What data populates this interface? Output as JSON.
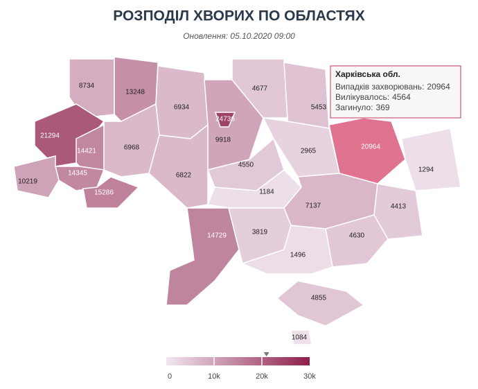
{
  "title": "РОЗПОДІЛ ХВОРИХ ПО ОБЛАСТЯХ",
  "subtitle": "Оновлення: 05.10.2020 09:00",
  "regions": [
    {
      "value": 8734
    },
    {
      "value": 13248
    },
    {
      "value": 6934
    },
    {
      "value": 9918
    },
    {
      "value": 24736
    },
    {
      "value": 4677
    },
    {
      "value": 5453
    },
    {
      "value": 21294
    },
    {
      "value": 14421
    },
    {
      "value": 6968
    },
    {
      "value": 14345
    },
    {
      "value": 10219
    },
    {
      "value": 15286
    },
    {
      "value": 6822
    },
    {
      "value": 4550
    },
    {
      "value": 2965
    },
    {
      "value": 20964
    },
    {
      "value": 1294
    },
    {
      "value": 1184
    },
    {
      "value": 7137
    },
    {
      "value": 4413
    },
    {
      "value": 14729
    },
    {
      "value": 3819
    },
    {
      "value": 4630
    },
    {
      "value": 1496
    },
    {
      "value": 4855
    },
    {
      "value": 1084
    }
  ],
  "tooltip": {
    "title": "Харківська обл.",
    "rows": [
      {
        "label": "Випадків захворювань:",
        "value": 20964
      },
      {
        "label": "Вилікувалось:",
        "value": 4564
      },
      {
        "label": "Загинуло:",
        "value": 369
      }
    ]
  },
  "legend": {
    "lim": [
      0,
      30000
    ],
    "ticks": [
      0,
      {
        "value": 10000,
        "label": "10k"
      },
      {
        "value": 20000,
        "label": "20k"
      },
      {
        "value": 30000,
        "label": "30k"
      }
    ],
    "colors": [
      "#f1e7f0",
      "#8e1f4a"
    ]
  }
}
